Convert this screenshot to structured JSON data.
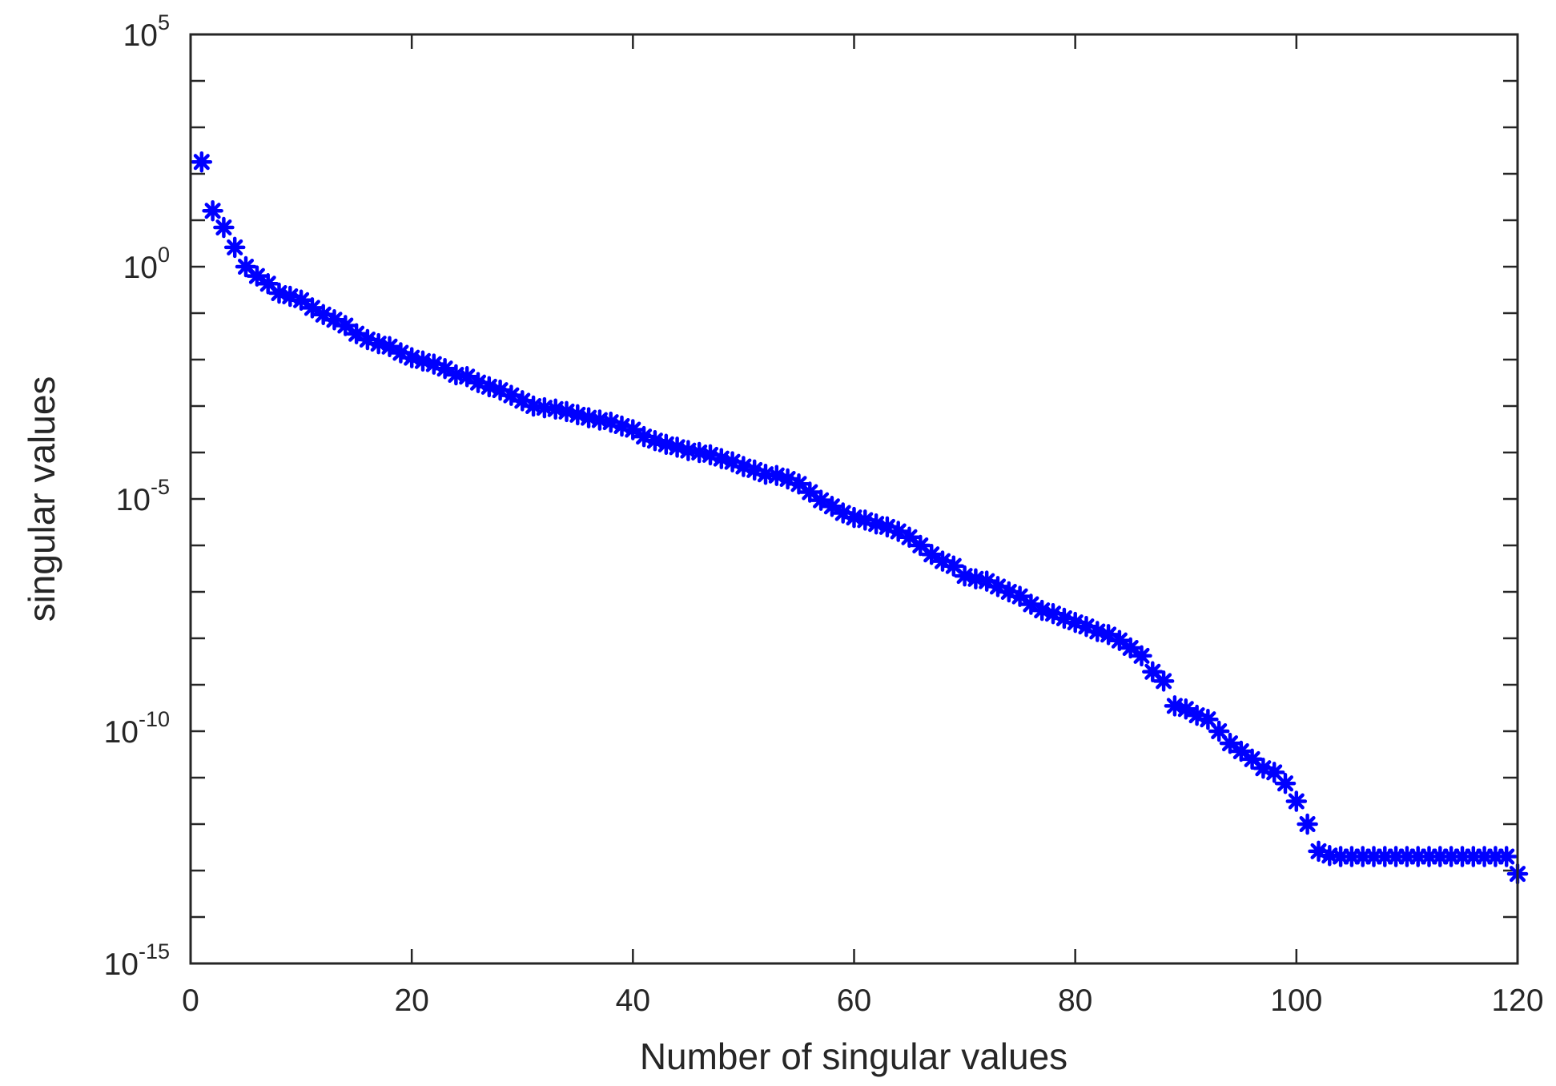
{
  "chart_data": {
    "type": "scatter",
    "title": "",
    "xlabel": "Number of singular values",
    "ylabel": "singular values",
    "xlim": [
      0,
      120
    ],
    "ylim": [
      1e-15,
      100000.0
    ],
    "yscale": "log",
    "grid": false,
    "marker": "asterisk",
    "x_ticks": [
      0,
      20,
      40,
      60,
      80,
      100,
      120
    ],
    "x_tick_labels": [
      "0",
      "20",
      "40",
      "60",
      "80",
      "100",
      "120"
    ],
    "y_ticks": [
      {
        "value": 100000.0,
        "base": "10",
        "exp": "5"
      },
      {
        "value": 1.0,
        "base": "10",
        "exp": "0"
      },
      {
        "value": 1e-05,
        "base": "10",
        "exp": "-5"
      },
      {
        "value": 1e-10,
        "base": "10",
        "exp": "-10"
      },
      {
        "value": 1e-15,
        "base": "10",
        "exp": "-15"
      }
    ],
    "series": [
      {
        "color": "#0000ff",
        "x": [
          1,
          2,
          3,
          4,
          5,
          6,
          7,
          8,
          9,
          10,
          11,
          12,
          13,
          14,
          15,
          16,
          17,
          18,
          19,
          20,
          21,
          22,
          23,
          24,
          25,
          26,
          27,
          28,
          29,
          30,
          31,
          32,
          33,
          34,
          35,
          36,
          37,
          38,
          39,
          40,
          41,
          42,
          43,
          44,
          45,
          46,
          47,
          48,
          49,
          50,
          51,
          52,
          53,
          54,
          55,
          56,
          57,
          58,
          59,
          60,
          61,
          62,
          63,
          64,
          65,
          66,
          67,
          68,
          69,
          70,
          71,
          72,
          73,
          74,
          75,
          76,
          77,
          78,
          79,
          80,
          81,
          82,
          83,
          84,
          85,
          86,
          87,
          88,
          89,
          90,
          91,
          92,
          93,
          94,
          95,
          96,
          97,
          98,
          99,
          100,
          101,
          102,
          103,
          104,
          105,
          106,
          107,
          108,
          109,
          110,
          111,
          112,
          113,
          114,
          115,
          116,
          117,
          118,
          119,
          120
        ],
        "y": [
          180.0,
          16.0,
          7.0,
          2.6,
          1.0,
          0.63,
          0.43,
          0.27,
          0.23,
          0.19,
          0.13,
          0.093,
          0.072,
          0.054,
          0.036,
          0.027,
          0.022,
          0.019,
          0.014,
          0.011,
          0.0093,
          0.008,
          0.0064,
          0.0047,
          0.0043,
          0.0032,
          0.0026,
          0.0022,
          0.0017,
          0.0013,
          0.001,
          0.00092,
          0.00086,
          0.00076,
          0.00065,
          0.00056,
          0.0005,
          0.00045,
          0.00037,
          0.00031,
          0.00022,
          0.00018,
          0.00015,
          0.00013,
          0.00011,
          0.0001,
          8.9e-05,
          7.4e-05,
          6.3e-05,
          5e-05,
          4.2e-05,
          3.4e-05,
          3.2e-05,
          2.7e-05,
          2.1e-05,
          1.4e-05,
          9.4e-06,
          6.9e-06,
          5e-06,
          4e-06,
          3.5e-06,
          2.9e-06,
          2.5e-06,
          2e-06,
          1.5e-06,
          1e-06,
          6.4e-07,
          4.6e-07,
          3.6e-07,
          2.2e-07,
          1.9e-07,
          1.7e-07,
          1.3e-07,
          1e-07,
          8e-08,
          5.4e-08,
          4e-08,
          3.4e-08,
          2.7e-08,
          2.2e-08,
          1.8e-08,
          1.4e-08,
          1.2e-08,
          9e-09,
          6.2e-09,
          4.2e-09,
          1.9e-09,
          1.2e-09,
          3.5e-10,
          3e-10,
          2.2e-10,
          1.8e-10,
          1e-10,
          5.5e-11,
          3.7e-11,
          2.5e-11,
          1.6e-11,
          1.3e-11,
          7.5e-12,
          3.1e-12,
          1e-12,
          2.6e-13,
          2.1e-13,
          2e-13,
          2e-13,
          2e-13,
          2e-13,
          2e-13,
          2e-13,
          2e-13,
          2e-13,
          2e-13,
          2e-13,
          2e-13,
          2e-13,
          2e-13,
          2e-13,
          2e-13,
          2e-13,
          8.5e-14
        ]
      }
    ]
  }
}
